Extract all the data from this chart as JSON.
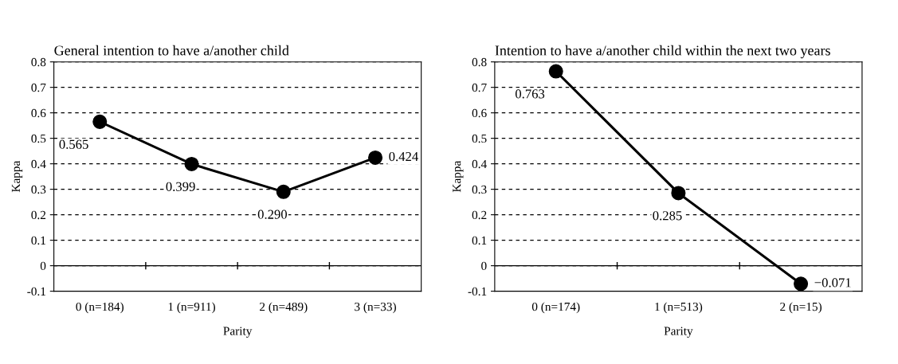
{
  "chart_data": [
    {
      "type": "line",
      "title": "General intention to have a/another child",
      "xlabel": "Parity",
      "ylabel": "Kappa",
      "categories": [
        "0 (n=184)",
        "1 (n=911)",
        "2 (n=489)",
        "3 (n=33)"
      ],
      "series": [
        {
          "color": "#000000",
          "values": [
            0.565,
            0.399,
            0.29,
            0.424
          ],
          "value_labels": [
            "0.565",
            "0.399",
            "0.290",
            "0.424"
          ]
        }
      ],
      "ylim": [
        -0.1,
        0.8
      ],
      "yticks": [
        -0.1,
        0,
        0.1,
        0.2,
        0.3,
        0.4,
        0.5,
        0.6,
        0.7,
        0.8
      ],
      "grid": "y",
      "marker": "circle",
      "line_style": "solid",
      "ref_lines": [
        {
          "axis": "y",
          "value": 0,
          "label": null
        }
      ],
      "legend": false
    },
    {
      "type": "line",
      "title": "Intention to have a/another child within the next two years",
      "xlabel": "Parity",
      "ylabel": "Kappa",
      "categories": [
        "0 (n=174)",
        "1 (n=513)",
        "2 (n=15)"
      ],
      "series": [
        {
          "color": "#000000",
          "values": [
            0.763,
            0.285,
            -0.071
          ],
          "value_labels": [
            "0.763",
            "0.285",
            "−0.071"
          ]
        }
      ],
      "ylim": [
        -0.1,
        0.8
      ],
      "yticks": [
        -0.1,
        0,
        0.1,
        0.2,
        0.3,
        0.4,
        0.5,
        0.6,
        0.7,
        0.8
      ],
      "grid": "y",
      "marker": "circle",
      "line_style": "solid",
      "ref_lines": [
        {
          "axis": "y",
          "value": 0,
          "label": null
        }
      ],
      "legend": false
    }
  ]
}
